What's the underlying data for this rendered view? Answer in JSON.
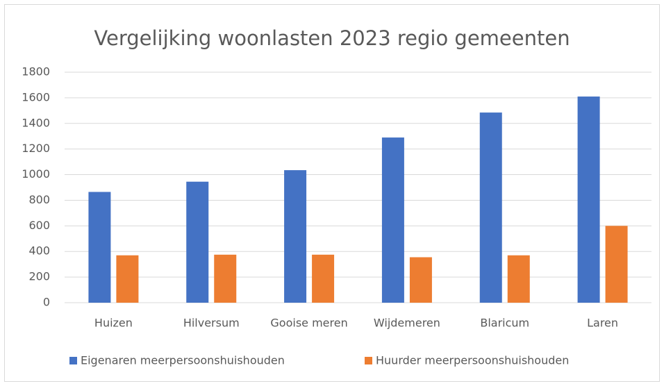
{
  "chart_data": {
    "type": "bar",
    "title": "Vergelijking woonlasten 2023 regio gemeenten",
    "categories": [
      "Huizen",
      "Hilversum",
      "Gooise meren",
      "Wijdemeren",
      "Blaricum",
      "Laren"
    ],
    "series": [
      {
        "name": "Eigenaren meerpersoonshuishouden",
        "color": "#4472c4",
        "values": [
          865,
          945,
          1035,
          1290,
          1485,
          1610
        ]
      },
      {
        "name": "Huurder meerpersoonshuishouden",
        "color": "#ed7d31",
        "values": [
          370,
          375,
          375,
          355,
          370,
          600
        ]
      }
    ],
    "ylim": [
      0,
      1800
    ],
    "yticks": [
      0,
      200,
      400,
      600,
      800,
      1000,
      1200,
      1400,
      1600,
      1800
    ],
    "grid": true,
    "legend": "bottom"
  }
}
